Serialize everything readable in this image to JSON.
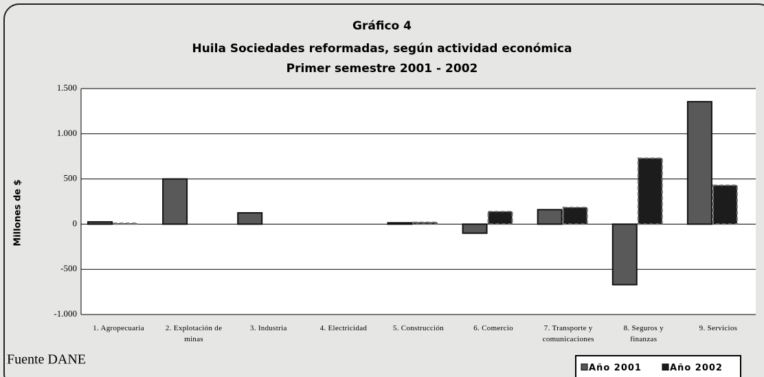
{
  "chart_data": {
    "type": "bar",
    "title": "Gráfico 4",
    "subtitle": "Huila Sociedades reformadas, según actividad económica",
    "subtitle2": "Primer semestre  2001 - 2002",
    "y_label": "Millones de $",
    "source": "Fuente DANE",
    "categories": [
      "1. Agropecuaria",
      "2. Explotación de minas",
      "3. Industria",
      "4. Electricidad",
      "5. Construcción",
      "6. Comercio",
      "7. Transporte y comunicaciones",
      "8. Seguros y finanzas",
      "9. Servicios"
    ],
    "series": [
      {
        "name": "Año 2001",
        "color": "#595959",
        "values": [
          25,
          500,
          125,
          0,
          15,
          -100,
          160,
          -670,
          1355
        ]
      },
      {
        "name": "Año 2002",
        "color": "#1c1c1c",
        "values": [
          10,
          0,
          0,
          0,
          20,
          140,
          185,
          730,
          430
        ]
      }
    ],
    "ylim": [
      -1000,
      1500
    ],
    "yticks": [
      {
        "value": -1000,
        "label": "-1.000"
      },
      -500,
      0,
      500,
      {
        "value": 1000,
        "label": "1.000"
      },
      {
        "value": 1500,
        "label": "1.500"
      }
    ],
    "grid": true,
    "legend": "bottom-right"
  }
}
